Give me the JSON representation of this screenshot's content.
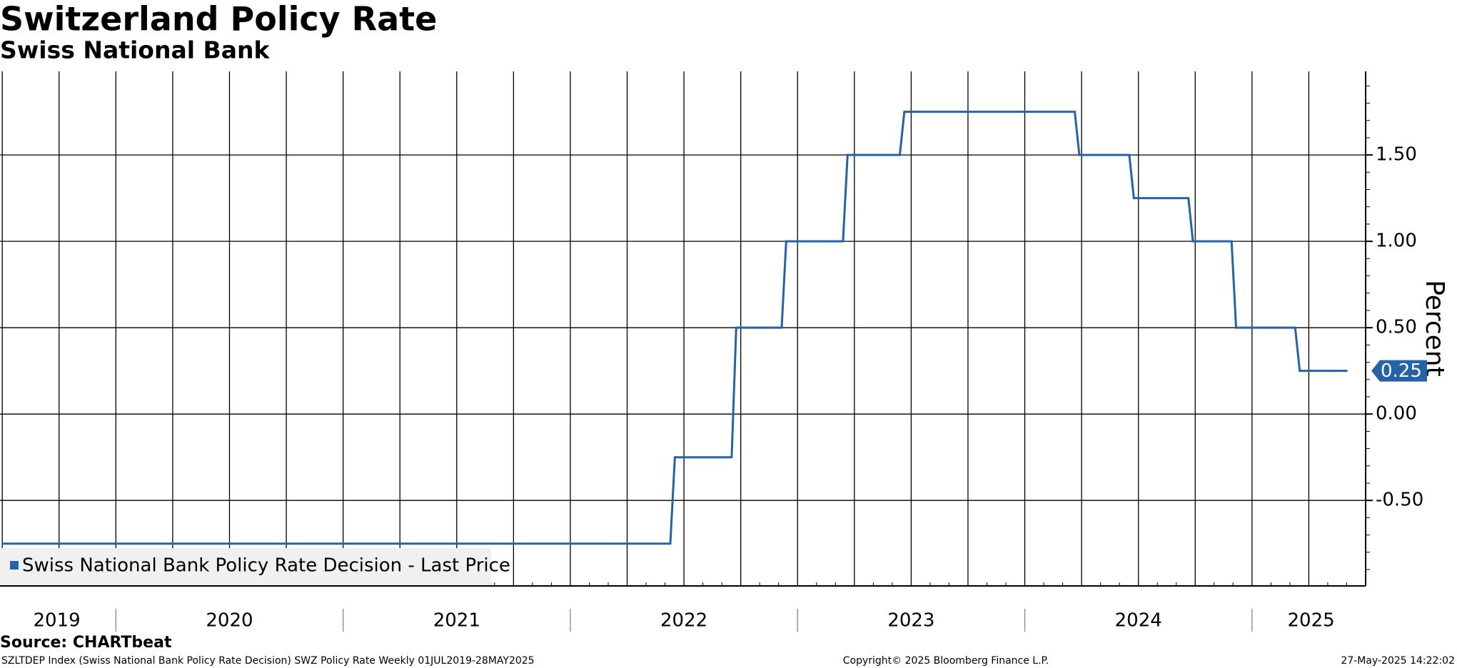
{
  "chart_data": {
    "type": "line",
    "title": "Switzerland Policy Rate",
    "subtitle": "Swiss National Bank",
    "y_axis_label": "Percent",
    "source": "Source: CHARTbeat",
    "footer_left": "SZLTDEP Index (Swiss National Bank Policy Rate Decision) SWZ Policy Rate  Weekly 01JUL2019-28MAY2025",
    "footer_center": "Copyright© 2025 Bloomberg Finance L.P.",
    "footer_right": "27-May-2025 14:22:02",
    "x": [
      2019.5,
      2022.44,
      2022.46,
      2022.71,
      2022.73,
      2022.93,
      2022.95,
      2023.2,
      2023.22,
      2023.45,
      2023.47,
      2024.22,
      2024.24,
      2024.46,
      2024.48,
      2024.72,
      2024.74,
      2024.91,
      2024.93,
      2025.19,
      2025.21,
      2025.42
    ],
    "series": [
      {
        "name": "Swiss National Bank Policy Rate Decision - Last Price",
        "color": "#2563a6",
        "values": [
          -0.75,
          -0.75,
          -0.25,
          -0.25,
          0.5,
          0.5,
          1.0,
          1.0,
          1.5,
          1.5,
          1.75,
          1.75,
          1.5,
          1.5,
          1.25,
          1.25,
          1.0,
          1.0,
          0.5,
          0.5,
          0.25,
          0.25
        ]
      }
    ],
    "xlim": [
      2019.49,
      2025.5
    ],
    "xticks": [
      {
        "value": 2019.74,
        "label": "2019"
      },
      {
        "value": 2020.5,
        "label": "2020"
      },
      {
        "value": 2021.5,
        "label": "2021"
      },
      {
        "value": 2022.5,
        "label": "2022"
      },
      {
        "value": 2023.5,
        "label": "2023"
      },
      {
        "value": 2024.5,
        "label": "2024"
      },
      {
        "value": 2025.26,
        "label": "2025"
      }
    ],
    "ylim": [
      -0.995,
      1.984
    ],
    "yticks": [
      {
        "value": -0.5,
        "label": "-0.50"
      },
      {
        "value": 0,
        "label": "0.00"
      },
      {
        "value": 0.5,
        "label": "0.50"
      },
      {
        "value": 1.0,
        "label": "1.00"
      },
      {
        "value": 1.5,
        "label": "1.50"
      }
    ],
    "grid": true,
    "legend": "bottom-left"
  }
}
